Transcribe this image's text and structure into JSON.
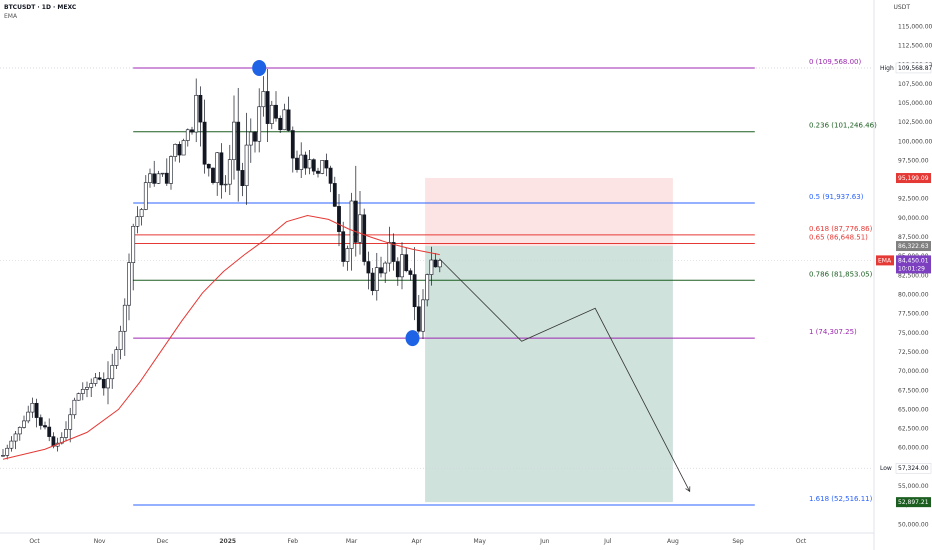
{
  "header": {
    "title": "BTCUSDT · 1D · MEXC",
    "indicator": "EMA"
  },
  "currency": "USDT",
  "colors": {
    "fib_purple": "#9c27b0",
    "fib_green": "#1b5e20",
    "fib_blue": "#2962ff",
    "fib_red": "#e53935",
    "ema": "#e53935",
    "candle_up": "#ffffff",
    "candle_down": "#131722",
    "stop_zone": "#fce4e4",
    "target_zone": "#cfe2dc",
    "marker": "#1e63e6"
  },
  "chart_data": {
    "type": "candlestick",
    "title": "BTCUSDT · 1D · MEXC",
    "indicator": "EMA",
    "ylim": [
      49000,
      117000
    ],
    "y_ticks": [
      50000,
      52500,
      55000,
      57500,
      60000,
      62500,
      65000,
      67500,
      70000,
      72500,
      75000,
      77500,
      80000,
      82500,
      85000,
      87500,
      90000,
      92500,
      95000,
      97500,
      100000,
      102500,
      105000,
      107500,
      110000,
      112500,
      115000
    ],
    "y_tick_labels": [
      "50,000.00",
      "52,500.00",
      "55,000.00",
      "57,500.00",
      "60,000.00",
      "62,500.00",
      "65,000.00",
      "67,500.00",
      "70,000.00",
      "72,500.00",
      "75,000.00",
      "77,500.00",
      "80,000.00",
      "82,500.00",
      "85,000.00",
      "87,500.00",
      "90,000.00",
      "92,500.00",
      "95,000.00",
      "97,500.00",
      "100,000.00",
      "102,500.00",
      "105,000.00",
      "107,500.00",
      "110,000.00",
      "112,500.00",
      "115,000.00"
    ],
    "x_ticks": [
      {
        "label": "Oct",
        "day": 15
      },
      {
        "label": "Nov",
        "day": 46
      },
      {
        "label": "Dec",
        "day": 76
      },
      {
        "label": "2025",
        "day": 107
      },
      {
        "label": "Feb",
        "day": 138
      },
      {
        "label": "Mar",
        "day": 166
      },
      {
        "label": "Apr",
        "day": 197
      },
      {
        "label": "May",
        "day": 227
      },
      {
        "label": "Jun",
        "day": 258
      },
      {
        "label": "Jul",
        "day": 288
      },
      {
        "label": "Aug",
        "day": 319
      },
      {
        "label": "Sep",
        "day": 350
      },
      {
        "label": "Oct",
        "day": 380
      }
    ],
    "xlim": [
      0,
      400
    ],
    "price_path": [
      [
        0,
        59000
      ],
      [
        6,
        61800
      ],
      [
        10,
        63500
      ],
      [
        14,
        65800
      ],
      [
        17,
        63000
      ],
      [
        20,
        62700
      ],
      [
        24,
        60200
      ],
      [
        27,
        60800
      ],
      [
        30,
        62400
      ],
      [
        34,
        66200
      ],
      [
        37,
        67500
      ],
      [
        41,
        68000
      ],
      [
        45,
        69500
      ],
      [
        48,
        67800
      ],
      [
        50,
        69000
      ],
      [
        53,
        71600
      ],
      [
        56,
        75200
      ],
      [
        59,
        80300
      ],
      [
        61,
        88000
      ],
      [
        63,
        89800
      ],
      [
        65,
        90500
      ],
      [
        67,
        91700
      ],
      [
        69,
        97500
      ],
      [
        71,
        94000
      ],
      [
        73,
        95000
      ],
      [
        75,
        96500
      ],
      [
        78,
        94500
      ],
      [
        80,
        98000
      ],
      [
        82,
        99600
      ],
      [
        84,
        98200
      ],
      [
        86,
        100100
      ],
      [
        88,
        101500
      ],
      [
        90,
        101200
      ],
      [
        92,
        106000
      ],
      [
        94,
        102500
      ],
      [
        96,
        97000
      ],
      [
        98,
        96500
      ],
      [
        100,
        94600
      ],
      [
        102,
        98500
      ],
      [
        104,
        94300
      ],
      [
        106,
        94400
      ],
      [
        108,
        97600
      ],
      [
        110,
        102500
      ],
      [
        112,
        96200
      ],
      [
        114,
        94200
      ],
      [
        116,
        99500
      ],
      [
        118,
        101200
      ],
      [
        120,
        100000
      ],
      [
        122,
        104500
      ],
      [
        124,
        106500
      ],
      [
        126,
        102300
      ],
      [
        128,
        104700
      ],
      [
        130,
        103000
      ],
      [
        132,
        101500
      ],
      [
        134,
        104100
      ],
      [
        136,
        101400
      ],
      [
        138,
        97800
      ],
      [
        140,
        96300
      ],
      [
        142,
        98200
      ],
      [
        144,
        96500
      ],
      [
        146,
        97600
      ],
      [
        148,
        96100
      ],
      [
        150,
        95800
      ],
      [
        152,
        97500
      ],
      [
        155,
        96000
      ],
      [
        158,
        91500
      ],
      [
        160,
        88200
      ],
      [
        162,
        84300
      ],
      [
        164,
        86000
      ],
      [
        166,
        92200
      ],
      [
        168,
        86800
      ],
      [
        170,
        90400
      ],
      [
        172,
        84300
      ],
      [
        174,
        82800
      ],
      [
        176,
        80500
      ],
      [
        178,
        83500
      ],
      [
        180,
        82800
      ],
      [
        182,
        84100
      ],
      [
        184,
        86800
      ],
      [
        186,
        84300
      ],
      [
        188,
        82300
      ],
      [
        190,
        85200
      ],
      [
        192,
        83100
      ],
      [
        194,
        82600
      ],
      [
        196,
        78400
      ],
      [
        198,
        75200
      ],
      [
        200,
        79300
      ],
      [
        202,
        82600
      ],
      [
        204,
        84500
      ],
      [
        206,
        83600
      ],
      [
        208,
        84450
      ]
    ],
    "candle_count": 105,
    "ema": [
      [
        0,
        58500
      ],
      [
        20,
        59800
      ],
      [
        40,
        62000
      ],
      [
        55,
        65000
      ],
      [
        65,
        68500
      ],
      [
        75,
        72500
      ],
      [
        85,
        76500
      ],
      [
        95,
        80200
      ],
      [
        105,
        83000
      ],
      [
        115,
        85200
      ],
      [
        125,
        87200
      ],
      [
        135,
        89500
      ],
      [
        145,
        90300
      ],
      [
        155,
        89800
      ],
      [
        165,
        88500
      ],
      [
        175,
        87500
      ],
      [
        185,
        86600
      ],
      [
        195,
        85900
      ],
      [
        208,
        85200
      ]
    ],
    "fib_levels": [
      {
        "ratio": "0",
        "label": "0 (109,568.00)",
        "value": 109568,
        "color": "#9c27b0"
      },
      {
        "ratio": "0.236",
        "label": "0.236 (101,246.46)",
        "value": 101246.46,
        "color": "#1b5e20"
      },
      {
        "ratio": "0.5",
        "label": "0.5 (91,937.63)",
        "value": 91937.63,
        "color": "#2962ff"
      },
      {
        "ratio": "0.618",
        "label": "0.618 (87,776.86)",
        "value": 87776.86,
        "color": "#e53935"
      },
      {
        "ratio": "0.65",
        "label": "0.65 (86,648.51)",
        "value": 86648.51,
        "color": "#e53935"
      },
      {
        "ratio": "0.786",
        "label": "0.786 (81,853.05)",
        "value": 81853.05,
        "color": "#1b5e20"
      },
      {
        "ratio": "1",
        "label": "1 (74,307.25)",
        "value": 74307.25,
        "color": "#9c27b0"
      },
      {
        "ratio": "1.618",
        "label": "1.618 (52,516.11)",
        "value": 52516.11,
        "color": "#2962ff"
      }
    ],
    "fib_x_range": [
      62,
      358
    ],
    "position": {
      "x_start": 201,
      "x_end": 319,
      "entry": 86322.63,
      "stop": 95199.09,
      "target": 52897.21
    },
    "projection_path": [
      [
        208,
        84600
      ],
      [
        247,
        73900
      ],
      [
        282,
        78200
      ],
      [
        327,
        54300
      ]
    ],
    "markers": [
      {
        "name": "high-marker",
        "day": 122,
        "price": 109568
      },
      {
        "name": "low-marker",
        "day": 195,
        "price": 74307
      }
    ],
    "high_line": {
      "value": 109568.87,
      "label": "High"
    },
    "low_line": {
      "value": 57324,
      "label": "Low"
    },
    "price_labels": [
      {
        "name": "high-price-label",
        "text": "109,568.87",
        "value": 109568.87,
        "bg": "#ffffff",
        "fg": "#131722",
        "prefix": "High"
      },
      {
        "name": "stop-price-label",
        "text": "95,199.09",
        "value": 95199.09,
        "bg": "#e53935",
        "fg": "#ffffff"
      },
      {
        "name": "entry-price-label",
        "text": "86,322.63",
        "value": 86322.63,
        "bg": "#808080",
        "fg": "#ffffff"
      },
      {
        "name": "current-price-label",
        "text": "84,450.01",
        "sub": "10:01:29",
        "value": 84450.01,
        "bg": "#7b3fbf",
        "fg": "#ffffff",
        "prefix": "EMA"
      },
      {
        "name": "low-price-label",
        "text": "57,324.00",
        "value": 57324,
        "bg": "#ffffff",
        "fg": "#131722",
        "prefix": "Low"
      },
      {
        "name": "target-price-label",
        "text": "52,897.21",
        "value": 52897.21,
        "bg": "#1b5e20",
        "fg": "#ffffff"
      }
    ]
  }
}
